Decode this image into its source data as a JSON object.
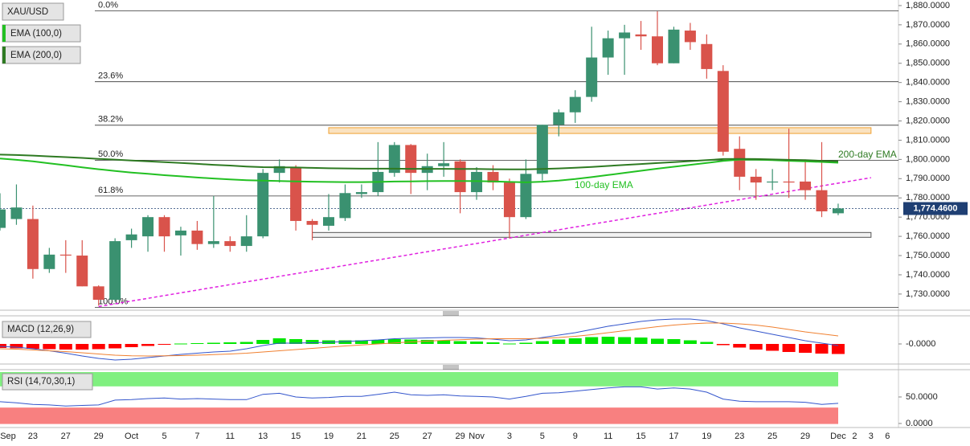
{
  "chart_data": {
    "type": "candlestick",
    "title": "XAU/USD",
    "categories": [
      "Sep",
      null,
      "23",
      null,
      "27",
      null,
      "29",
      null,
      "Oct",
      null,
      "5",
      null,
      "7",
      null,
      "11",
      null,
      "13",
      null,
      "15",
      null,
      "19",
      null,
      "21",
      null,
      "25",
      null,
      "27",
      null,
      "29",
      "Nov",
      null,
      "3",
      null,
      "5",
      null,
      "9",
      null,
      "11",
      null,
      "15",
      null,
      "17",
      null,
      "19",
      null,
      "23",
      null,
      "25",
      null,
      "29",
      null,
      "Dec",
      "2",
      "3",
      "6"
    ],
    "up_color": "#3a9170",
    "down_color": "#d9534b",
    "open": [
      1764.4,
      1769,
      1769,
      1743,
      1750.5,
      1750,
      1734,
      1727,
      1758,
      1760,
      1770,
      1760.5,
      1763,
      1756,
      1757.5,
      1755,
      1760,
      1793,
      1796,
      1768,
      1765.5,
      1769.5,
      1782,
      1783,
      1793,
      1807.5,
      1793,
      1796.5,
      1799,
      1783,
      1793.5,
      1788,
      1770,
      1792.5,
      1818,
      1824.5,
      1832.5,
      1853,
      1863,
      1865,
      1864,
      1850,
      1867,
      1860,
      1846,
      1805.5,
      1791,
      1788,
      1788.5,
      1788.5,
      1784,
      1772,
      null,
      null,
      null
    ],
    "high": [
      1782.4,
      1787,
      1776,
      1754,
      1758,
      1758,
      1734.5,
      1759,
      1764,
      1771,
      1771,
      1765,
      1768,
      1781,
      1760,
      1771,
      1795,
      1800,
      1797,
      1769,
      1782,
      1787,
      1787,
      1809,
      1809,
      1808,
      1803,
      1809,
      1800,
      1796,
      1797,
      1790,
      1800,
      1818,
      1826,
      1836,
      1869,
      1867,
      1870,
      1872,
      1877,
      1869,
      1871,
      1865,
      1849,
      1812,
      1795,
      1795,
      1816,
      1800,
      1809,
      1777,
      null,
      null,
      null
    ],
    "low": [
      1763,
      1766,
      1738,
      1741,
      1741,
      1734,
      1724,
      1726,
      1754,
      1752,
      1752,
      1750,
      1753,
      1754,
      1752,
      1752,
      1759,
      1788,
      1763,
      1758,
      1763,
      1768,
      1780,
      1781,
      1791,
      1782,
      1784,
      1791,
      1772,
      1779,
      1784,
      1759,
      1769,
      1789,
      1812,
      1819,
      1830,
      1844,
      1844,
      1857,
      1849,
      1850,
      1857,
      1842,
      1802,
      1784,
      1779,
      1784,
      1780,
      1779,
      1770,
      1771,
      null,
      null,
      null
    ],
    "close": [
      1774,
      1775,
      1743,
      1750.5,
      1750,
      1734,
      1727,
      1757.5,
      1761,
      1770,
      1760,
      1763,
      1756,
      1757.5,
      1755,
      1760,
      1793,
      1796.5,
      1768,
      1766,
      1770,
      1782.5,
      1783,
      1793.5,
      1807.5,
      1793,
      1796.5,
      1798,
      1783,
      1793.5,
      1788,
      1770,
      1792.5,
      1818,
      1824.5,
      1832.5,
      1853,
      1863,
      1866,
      1864,
      1850,
      1867.5,
      1861,
      1847,
      1804,
      1791,
      1788,
      1788.5,
      1788,
      1784,
      1773,
      1774.5,
      null,
      null,
      null
    ],
    "series": [
      {
        "name": "EMA (100,0)",
        "color": "#22c022",
        "annotation": "100-day EMA",
        "values": [
          1800.5,
          1799.8,
          1799.0,
          1798.0,
          1797.0,
          1795.9,
          1794.9,
          1794.0,
          1793.2,
          1792.5,
          1791.8,
          1791.2,
          1790.6,
          1790.1,
          1789.6,
          1789.2,
          1789.0,
          1788.8,
          1788.6,
          1788.4,
          1788.3,
          1788.2,
          1788.2,
          1788.3,
          1788.5,
          1788.6,
          1788.7,
          1788.8,
          1788.8,
          1788.7,
          1788.6,
          1788.3,
          1788.1,
          1788.4,
          1789.0,
          1789.8,
          1790.8,
          1791.9,
          1793.0,
          1794.1,
          1795.2,
          1796.2,
          1797.2,
          1798.2,
          1799.2,
          1799.9,
          1799.9,
          1799.6,
          1799.3,
          1799.0,
          1798.7,
          1798.3,
          null,
          null,
          null
        ]
      },
      {
        "name": "EMA (200,0)",
        "color": "#2e7a22",
        "annotation": "200-day EMA",
        "values": [
          1802.5,
          1802.3,
          1802.0,
          1801.6,
          1801.2,
          1800.8,
          1800.3,
          1799.9,
          1799.4,
          1799.0,
          1798.6,
          1798.2,
          1797.7,
          1797.2,
          1796.8,
          1796.3,
          1796.0,
          1795.9,
          1795.8,
          1795.6,
          1795.4,
          1795.3,
          1795.2,
          1795.2,
          1795.2,
          1795.1,
          1795.1,
          1795.1,
          1795.0,
          1795.0,
          1794.9,
          1794.8,
          1794.8,
          1795.0,
          1795.3,
          1795.7,
          1796.1,
          1796.6,
          1797.1,
          1797.6,
          1798.1,
          1798.6,
          1799.1,
          1799.6,
          1800.2,
          1800.3,
          1800.2,
          1800.0,
          1799.8,
          1799.6,
          1799.3,
          1799.0,
          null,
          null,
          null
        ]
      }
    ],
    "ylim": [
      1721.6,
      1882.9
    ],
    "yticks": [
      {
        "value": 1730,
        "label": "1,730.0000"
      },
      {
        "value": 1740,
        "label": "1,740.0000"
      },
      {
        "value": 1750,
        "label": "1,750.0000"
      },
      {
        "value": 1760,
        "label": "1,760.0000"
      },
      {
        "value": 1770,
        "label": "1,770.0000"
      },
      {
        "value": 1780,
        "label": "1,780.0000"
      },
      {
        "value": 1790,
        "label": "1,790.0000"
      },
      {
        "value": 1800,
        "label": "1,800.0000"
      },
      {
        "value": 1810,
        "label": "1,810.0000"
      },
      {
        "value": 1820,
        "label": "1,820.0000"
      },
      {
        "value": 1830,
        "label": "1,830.0000"
      },
      {
        "value": 1840,
        "label": "1,840.0000"
      },
      {
        "value": 1850,
        "label": "1,850.0000"
      },
      {
        "value": 1860,
        "label": "1,860.0000"
      },
      {
        "value": 1870,
        "label": "1,870.0000"
      },
      {
        "value": 1880,
        "label": "1,880.0000"
      }
    ],
    "last_price": {
      "value": 1774.46,
      "label": "1,774.4600",
      "color": "#1f3f73"
    },
    "fibonacci": [
      {
        "label": "0.0%",
        "value": 1877.2
      },
      {
        "label": "23.6%",
        "value": 1840.4
      },
      {
        "label": "38.2%",
        "value": 1817.8
      },
      {
        "label": "50.0%",
        "value": 1799.6
      },
      {
        "label": "61.8%",
        "value": 1781
      },
      {
        "label": "100.0%",
        "value": 1723
      }
    ],
    "zones": [
      {
        "low": 1813.5,
        "high": 1816.5,
        "color": "#f0a030"
      },
      {
        "low": 1759.5,
        "high": 1762,
        "color": "#555555"
      }
    ],
    "trendline": {
      "values": [
        1723.5,
        1790.5
      ],
      "color": "#e020e0"
    },
    "macd": {
      "title": "MACD (12,26,9)",
      "ylim": [
        -9.6,
        13.2
      ],
      "yticks": [
        {
          "value": 0,
          "label": "-0.0000"
        }
      ],
      "histogram": [
        -2,
        -2.2,
        -2.4,
        -2.6,
        -2.8,
        -2.8,
        -2.6,
        -2.2,
        -1.6,
        -1,
        -0.4,
        0.2,
        0.4,
        0.6,
        0.8,
        1.0,
        2.0,
        2.8,
        2.4,
        2.0,
        1.8,
        1.8,
        1.8,
        2.0,
        2.4,
        2.2,
        2.0,
        1.8,
        1.4,
        1.2,
        0.8,
        0.2,
        0.6,
        1.4,
        2.2,
        2.8,
        3.4,
        3.6,
        3.4,
        3.2,
        2.6,
        2.4,
        1.8,
        1.0,
        -0.6,
        -1.8,
        -2.8,
        -3.4,
        -4.0,
        -4.4,
        -4.8,
        -5.0,
        null,
        null,
        null
      ],
      "macd_line": [
        -1.2,
        -1.6,
        -2.4,
        -3.4,
        -4.6,
        -6.0,
        -7.2,
        -8.0,
        -7.6,
        -6.8,
        -6.0,
        -5.2,
        -4.6,
        -4.0,
        -3.6,
        -2.4,
        -0.8,
        0.4,
        0.4,
        0.6,
        0.8,
        1.2,
        1.6,
        2.0,
        2.6,
        2.8,
        3.0,
        3.2,
        3.2,
        3.0,
        2.4,
        1.6,
        2.0,
        3.2,
        4.4,
        5.6,
        7.2,
        8.8,
        10.0,
        11.2,
        12.0,
        12.4,
        12.4,
        11.6,
        10.0,
        8.0,
        6.4,
        4.8,
        3.2,
        1.6,
        0.4,
        -0.8,
        null,
        null,
        null
      ],
      "signal_line": [
        -2.4,
        -2.6,
        -3.0,
        -3.4,
        -3.8,
        -4.4,
        -5.0,
        -5.6,
        -5.9,
        -6.0,
        -5.9,
        -5.8,
        -5.6,
        -5.3,
        -5.0,
        -4.6,
        -4.0,
        -3.4,
        -2.8,
        -2.2,
        -1.6,
        -1.0,
        -0.5,
        0.0,
        0.5,
        1.0,
        1.4,
        1.8,
        2.1,
        2.4,
        2.6,
        2.6,
        2.6,
        2.8,
        3.2,
        3.8,
        4.6,
        5.6,
        6.6,
        7.6,
        8.6,
        9.4,
        10.0,
        10.4,
        10.4,
        10.0,
        9.4,
        8.4,
        7.2,
        6.0,
        5.0,
        4.0,
        null,
        null,
        null
      ],
      "macd_color": "#3355cc",
      "signal_color": "#f08030",
      "up_color": "#00e600",
      "down_color": "#ff0000"
    },
    "rsi": {
      "title": "RSI (14,70,30,1)",
      "ylim": [
        -4,
        100
      ],
      "yticks": [
        {
          "value": 50,
          "label": "50.0000"
        },
        {
          "value": 0,
          "label": "0.0000"
        }
      ],
      "overbought": 70,
      "oversold": 30,
      "overbought_color": "#80f080",
      "oversold_color": "#f88080",
      "color": "#3355cc",
      "values": [
        41,
        39,
        36,
        35,
        33,
        34,
        35,
        44,
        45,
        47,
        48,
        46,
        47,
        46,
        45,
        45,
        55,
        57,
        50,
        48,
        49,
        51,
        51,
        55,
        59,
        54,
        53,
        54,
        52,
        51,
        50,
        46,
        51,
        57,
        58,
        61,
        64,
        67,
        69,
        69,
        65,
        67,
        65,
        59,
        46,
        42,
        41,
        41,
        41,
        40,
        36,
        38,
        null,
        null,
        null
      ]
    }
  }
}
